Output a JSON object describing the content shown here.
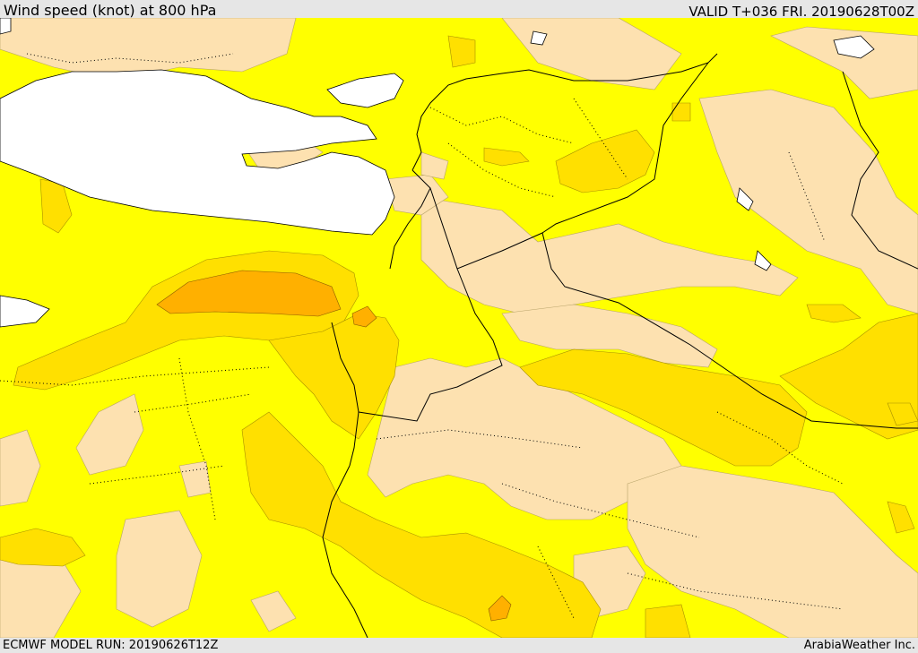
{
  "header": {
    "title": "Wind speed (knot) at 800 hPa",
    "valid": "VALID T+036 FRI. 20190628T00Z"
  },
  "footer": {
    "model_run": "ECMWF MODEL RUN: 20190626T12Z",
    "brand": "ArabiaWeather Inc."
  },
  "colors": {
    "sea": "#ffffff",
    "calm": "#fde1b0",
    "low": "#ffff00",
    "moderate": "#ffe000",
    "high": "#ffc400",
    "very_high": "#ffb000",
    "border": "#000000"
  }
}
